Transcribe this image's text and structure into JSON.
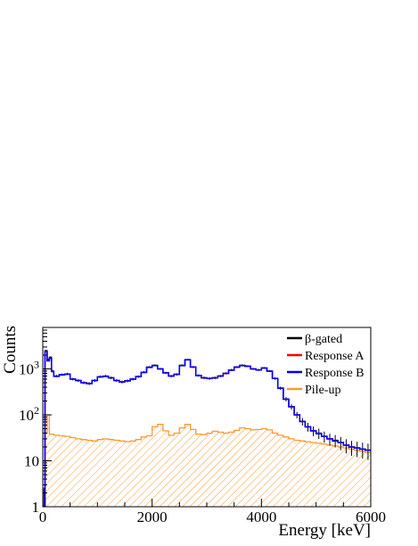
{
  "chart_data": {
    "type": "line",
    "xlabel": "Energy [keV]",
    "ylabel": "Counts",
    "xlim": [
      0,
      6000
    ],
    "ylim": [
      1,
      8000
    ],
    "yscale": "log",
    "x_ticks": [
      0,
      2000,
      4000,
      6000
    ],
    "y_ticks": [
      {
        "value": 1,
        "label": "1"
      },
      {
        "value": 10,
        "label": "10"
      },
      {
        "value": 100,
        "label": "10",
        "sup": "2"
      },
      {
        "value": 1000,
        "label": "10",
        "sup": "3"
      }
    ],
    "grid": false,
    "legend_position": "top-right",
    "series": [
      {
        "name": "β-gated",
        "color": "#000000",
        "style": "histogram-errorbars",
        "x": [
          0,
          40,
          80,
          120,
          160,
          200,
          300,
          400,
          500,
          600,
          700,
          800,
          900,
          1000,
          1100,
          1200,
          1300,
          1400,
          1500,
          1600,
          1700,
          1800,
          1900,
          2000,
          2100,
          2200,
          2300,
          2400,
          2500,
          2600,
          2700,
          2800,
          2900,
          3000,
          3100,
          3200,
          3300,
          3400,
          3500,
          3600,
          3700,
          3800,
          3900,
          4000,
          4100,
          4200,
          4300,
          4400,
          4500,
          4600,
          4700,
          4800,
          4900,
          5000,
          5100,
          5200,
          5300,
          5400,
          5500,
          5600,
          5700,
          5800,
          5900,
          6000
        ],
        "y": [
          1,
          2500,
          1600,
          1800,
          900,
          700,
          750,
          780,
          600,
          560,
          500,
          480,
          560,
          680,
          700,
          640,
          560,
          520,
          550,
          600,
          680,
          850,
          1100,
          1200,
          1000,
          820,
          700,
          760,
          1200,
          1600,
          1100,
          720,
          640,
          620,
          640,
          700,
          800,
          950,
          1100,
          1200,
          1150,
          1000,
          950,
          1050,
          900,
          620,
          380,
          220,
          150,
          100,
          72,
          55,
          45,
          40,
          34,
          30,
          28,
          25,
          22,
          20,
          19,
          18,
          17,
          16
        ]
      },
      {
        "name": "Response A",
        "color": "#ff0000",
        "style": "line",
        "x": [
          0,
          40,
          80,
          120,
          160,
          200,
          300,
          400,
          500,
          600,
          700,
          800,
          900,
          1000,
          1100,
          1200,
          1300,
          1400,
          1500,
          1600,
          1700,
          1800,
          1900,
          2000,
          2100,
          2200,
          2300,
          2400,
          2500,
          2600,
          2700,
          2800,
          2900,
          3000,
          3100,
          3200,
          3300,
          3400,
          3500,
          3600,
          3700,
          3800,
          3900,
          4000,
          4100,
          4200,
          4300,
          4400,
          4500,
          4600,
          4700,
          4800,
          4900,
          5000,
          5100,
          5200,
          5300,
          5400,
          5500,
          5600,
          5700,
          5800,
          5900,
          6000
        ],
        "y": [
          1,
          2400,
          1500,
          1700,
          880,
          690,
          740,
          770,
          600,
          560,
          500,
          480,
          560,
          670,
          690,
          640,
          560,
          520,
          550,
          600,
          680,
          840,
          1080,
          1180,
          1000,
          820,
          700,
          760,
          1180,
          1580,
          1100,
          720,
          640,
          620,
          640,
          700,
          800,
          940,
          1090,
          1180,
          1140,
          1000,
          950,
          1040,
          890,
          620,
          380,
          220,
          150,
          100,
          72,
          55,
          45,
          39,
          34,
          30,
          27,
          25,
          22,
          20,
          19,
          18,
          17,
          16
        ]
      },
      {
        "name": "Response B",
        "color": "#0000ff",
        "style": "line",
        "x": [
          0,
          40,
          80,
          120,
          160,
          200,
          300,
          400,
          500,
          600,
          700,
          800,
          900,
          1000,
          1100,
          1200,
          1300,
          1400,
          1500,
          1600,
          1700,
          1800,
          1900,
          2000,
          2100,
          2200,
          2300,
          2400,
          2500,
          2600,
          2700,
          2800,
          2900,
          3000,
          3100,
          3200,
          3300,
          3400,
          3500,
          3600,
          3700,
          3800,
          3900,
          4000,
          4100,
          4200,
          4300,
          4400,
          4500,
          4600,
          4700,
          4800,
          4900,
          5000,
          5100,
          5200,
          5300,
          5400,
          5500,
          5600,
          5700,
          5800,
          5900,
          6000
        ],
        "y": [
          1,
          2400,
          1500,
          1700,
          880,
          690,
          740,
          770,
          600,
          560,
          500,
          480,
          560,
          670,
          690,
          640,
          560,
          520,
          550,
          600,
          680,
          840,
          1080,
          1180,
          1000,
          820,
          700,
          760,
          1180,
          1580,
          1100,
          720,
          640,
          620,
          640,
          700,
          800,
          940,
          1090,
          1180,
          1140,
          1000,
          950,
          1040,
          890,
          620,
          380,
          220,
          150,
          100,
          72,
          55,
          45,
          39,
          34,
          30,
          27,
          25,
          22,
          20,
          19,
          18,
          17,
          16
        ]
      },
      {
        "name": "Pile-up",
        "color": "#ff9933",
        "style": "histogram-filled-hatched",
        "x": [
          0,
          40,
          80,
          120,
          200,
          300,
          400,
          500,
          600,
          700,
          800,
          900,
          1000,
          1100,
          1200,
          1300,
          1400,
          1500,
          1600,
          1700,
          1800,
          1900,
          2000,
          2100,
          2200,
          2300,
          2400,
          2500,
          2600,
          2700,
          2800,
          2900,
          3000,
          3100,
          3200,
          3300,
          3400,
          3500,
          3600,
          3700,
          3800,
          3900,
          4000,
          4100,
          4200,
          4300,
          4400,
          4500,
          4600,
          4700,
          4800,
          4900,
          5000,
          5100,
          5200,
          5300,
          5400,
          5500,
          5600,
          5700,
          5800,
          5900,
          6000
        ],
        "y": [
          1,
          40,
          100,
          38,
          36,
          35,
          34,
          32,
          30,
          29,
          28,
          27,
          29,
          30,
          29,
          28,
          27,
          26,
          27,
          29,
          33,
          35,
          55,
          62,
          45,
          36,
          40,
          52,
          62,
          48,
          38,
          37,
          40,
          44,
          42,
          40,
          42,
          46,
          52,
          50,
          47,
          48,
          50,
          47,
          40,
          36,
          33,
          30,
          28,
          27,
          26,
          25,
          24,
          23,
          22,
          21,
          20,
          19,
          18,
          17,
          16,
          15,
          14
        ]
      }
    ]
  }
}
